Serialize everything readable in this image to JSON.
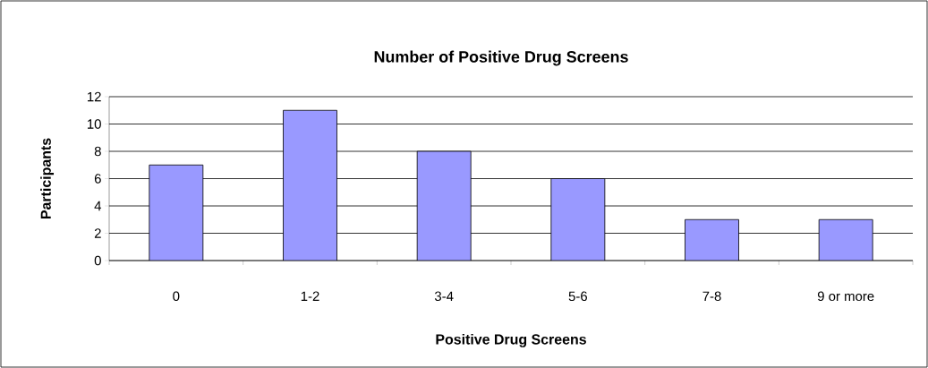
{
  "chart_data": {
    "type": "bar",
    "title": "Number of Positive Drug Screens",
    "xlabel": "Positive Drug Screens",
    "ylabel": "Participants",
    "categories": [
      "0",
      "1-2",
      "3-4",
      "5-6",
      "7-8",
      "9 or more"
    ],
    "values": [
      7,
      11,
      8,
      6,
      3,
      3
    ],
    "color": "#9999ff",
    "ylim": [
      0,
      12
    ],
    "yticks": [
      0,
      2,
      4,
      6,
      8,
      10,
      12
    ],
    "grid": "y"
  }
}
